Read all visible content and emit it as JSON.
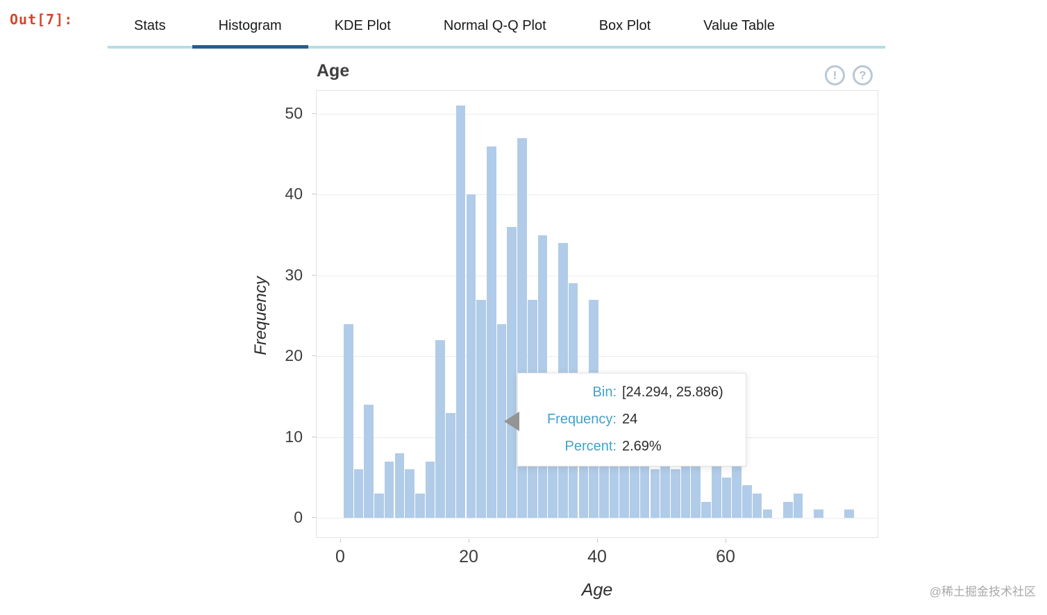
{
  "prompt": {
    "label": "Out[7]:"
  },
  "tabs": {
    "items": [
      {
        "label": "Stats",
        "active": false
      },
      {
        "label": "Histogram",
        "active": true
      },
      {
        "label": "KDE Plot",
        "active": false
      },
      {
        "label": "Normal Q-Q Plot",
        "active": false
      },
      {
        "label": "Box Plot",
        "active": false
      },
      {
        "label": "Value Table",
        "active": false
      }
    ],
    "active_underline_color": "#265e8d",
    "underline_color": "#b5dce5"
  },
  "chart": {
    "title": "Age",
    "alert_glyph": "!",
    "help_glyph": "?"
  },
  "chart_data": {
    "type": "bar",
    "subtype": "histogram",
    "title": "Age",
    "xlabel": "Age",
    "ylabel": "Frequency",
    "bin_start": 0.42,
    "bin_width": 1.5916,
    "frequencies": [
      24,
      6,
      14,
      3,
      7,
      8,
      6,
      3,
      7,
      22,
      13,
      51,
      40,
      27,
      46,
      24,
      36,
      47,
      27,
      35,
      17,
      34,
      29,
      12,
      27,
      8,
      17,
      9,
      17,
      17,
      6,
      17,
      6,
      9,
      7,
      2,
      7,
      5,
      7,
      4,
      3,
      1,
      0,
      2,
      3,
      0,
      1,
      0,
      0,
      1
    ],
    "x_ticks": [
      0,
      20,
      40,
      60
    ],
    "y_ticks": [
      0,
      10,
      20,
      30,
      40,
      50
    ],
    "xlim": [
      -3.78,
      83.78
    ],
    "ylim": [
      0,
      52.8
    ],
    "grid": true,
    "legend": "none",
    "bar_color": "#b1cce8",
    "hovered_bin": {
      "index": 15,
      "bin": "[24.294, 25.886)",
      "frequency": 24,
      "percent": "2.69%"
    }
  },
  "tooltip": {
    "rows": [
      {
        "label": "Bin:",
        "value": "[24.294, 25.886)"
      },
      {
        "label": "Frequency:",
        "value": "24"
      },
      {
        "label": "Percent:",
        "value": "2.69%"
      }
    ]
  },
  "watermark": "@稀土掘金技术社区"
}
